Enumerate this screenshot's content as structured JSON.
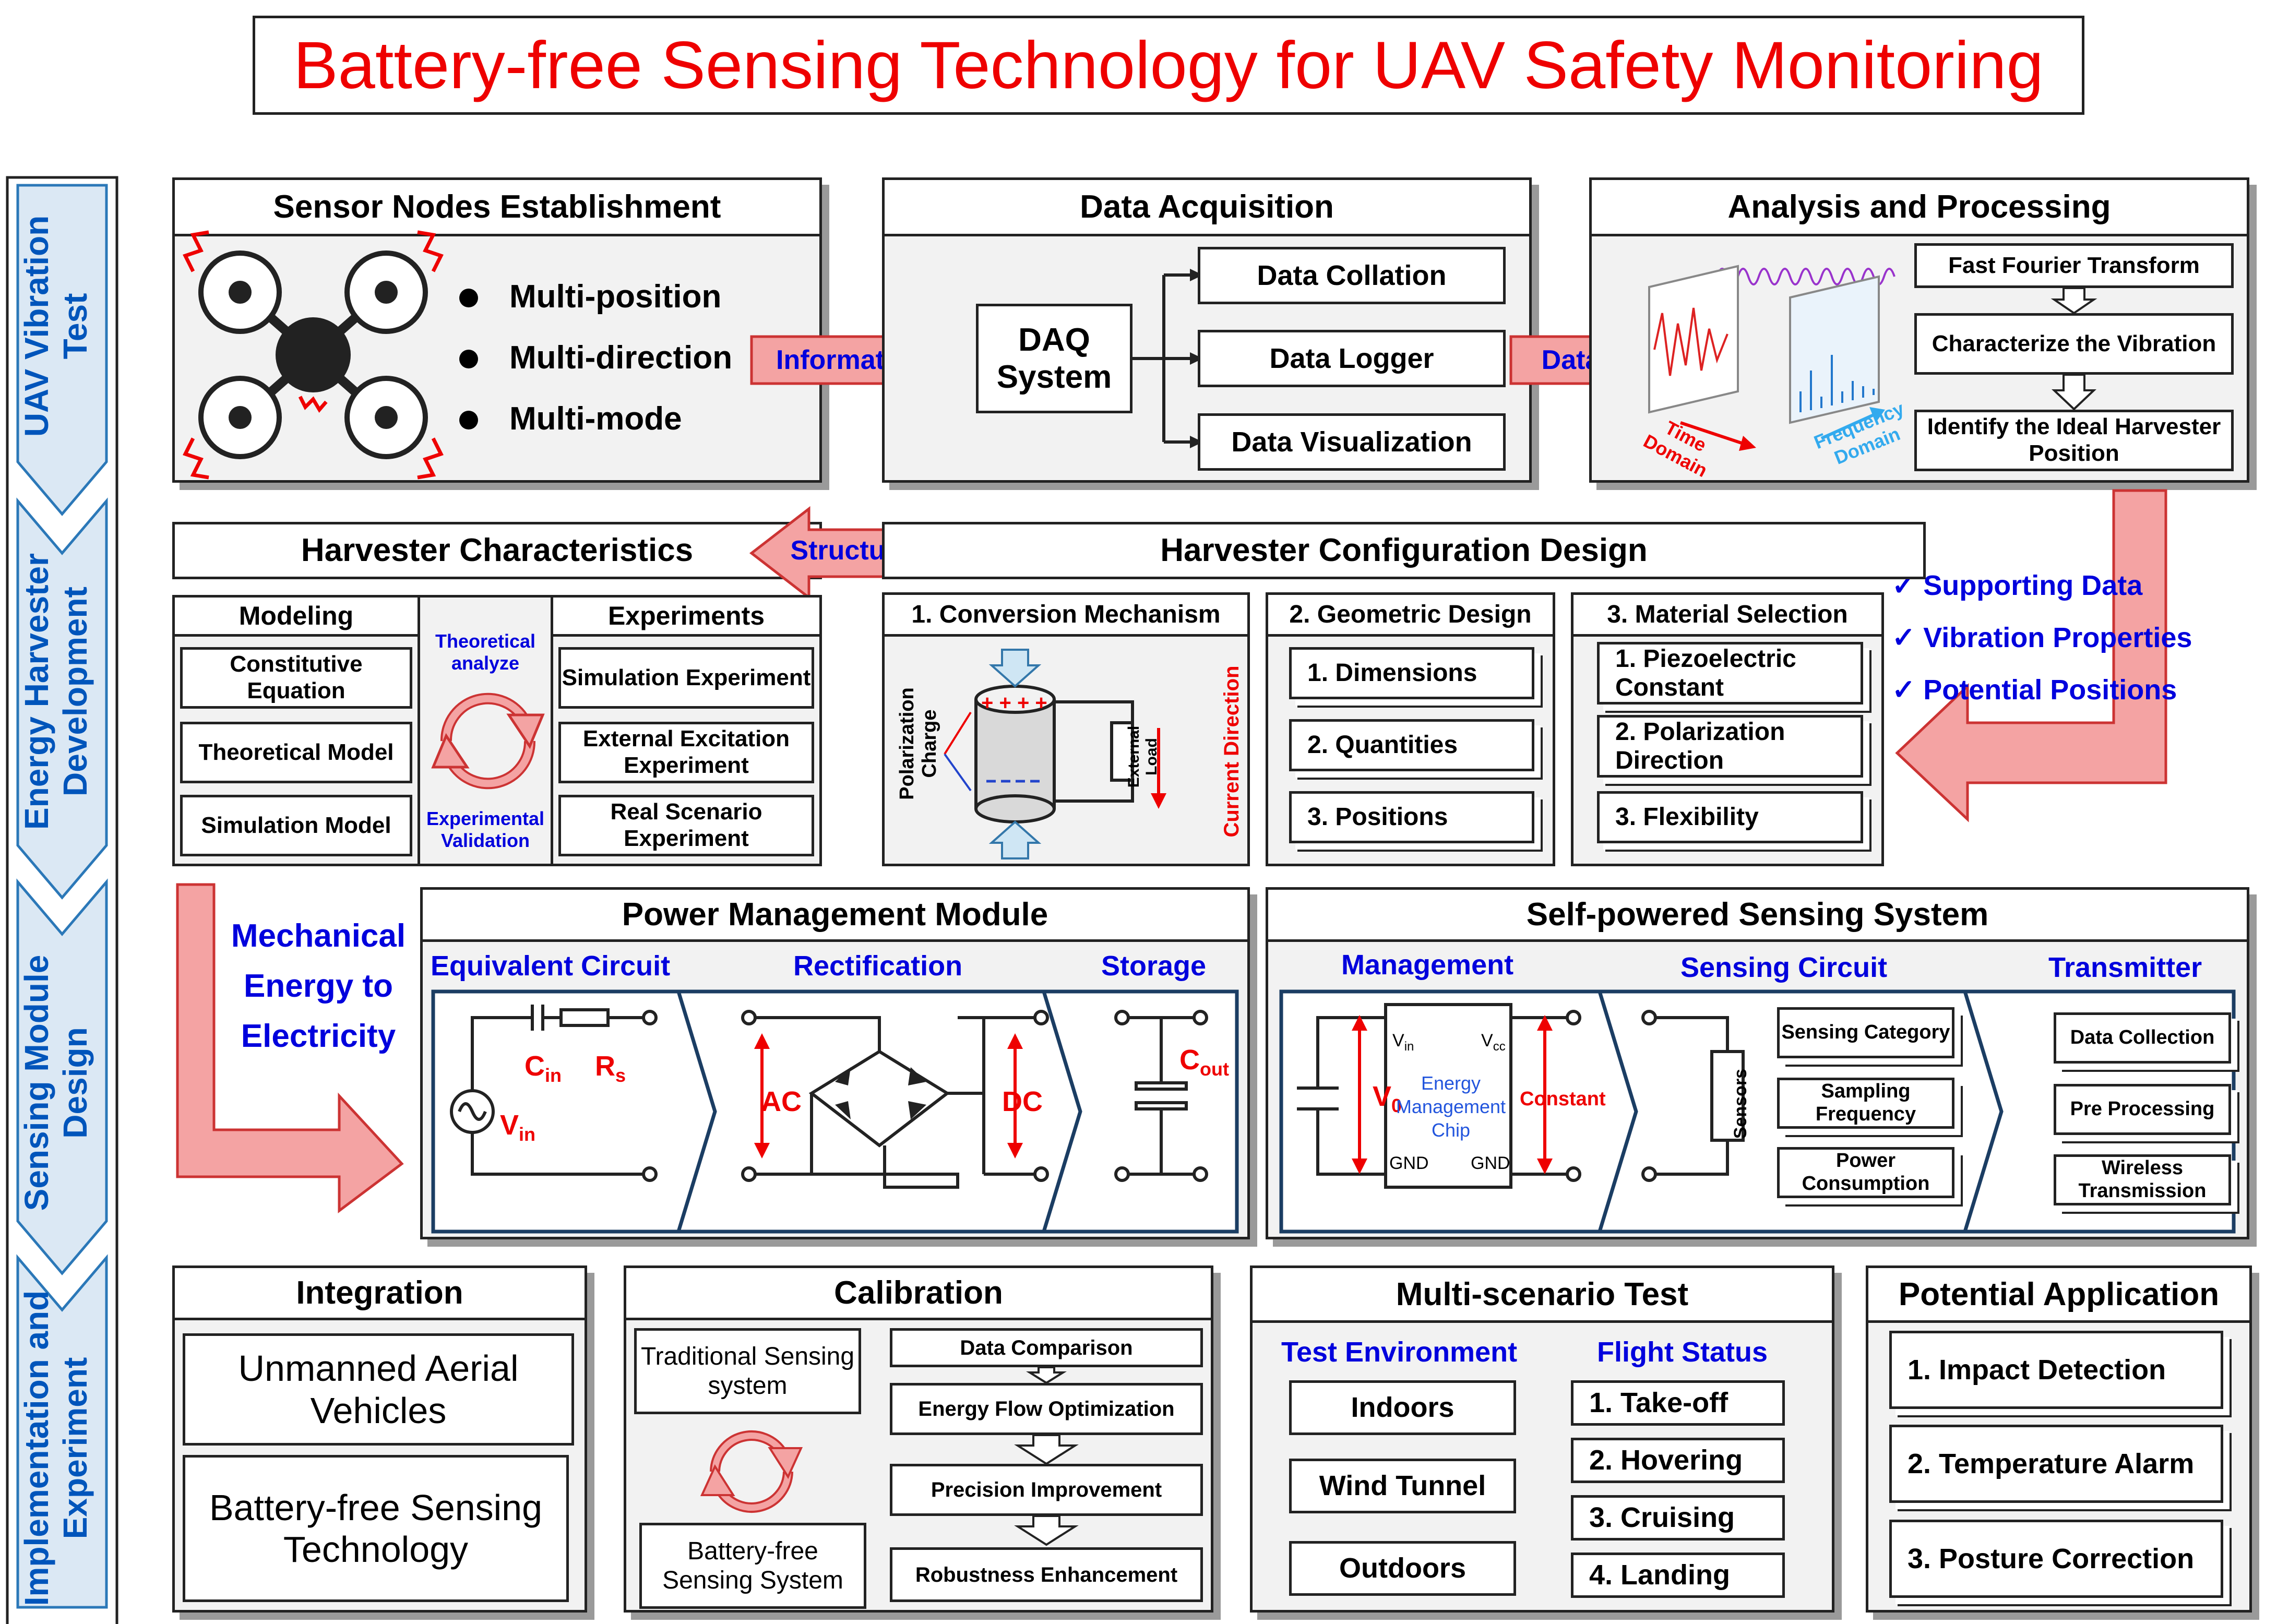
{
  "title": "Battery-free Sensing Technology for UAV Safety Monitoring",
  "colors": {
    "title_red": "#ee0000",
    "blue_label": "#0000dd",
    "side_blue": "#0055bb",
    "arrow_pink": "#f4a3a3",
    "chevron_fill": "#dbe8f4"
  },
  "sidebar": [
    {
      "label": "UAV Vibration Test"
    },
    {
      "label": "Energy Harvester Development"
    },
    {
      "label": "Sensing Module Design"
    },
    {
      "label": "Implementation and Experiment"
    }
  ],
  "sensor_nodes": {
    "title": "Sensor Nodes Establishment",
    "bullets": [
      "Multi-position",
      "Multi-direction",
      "Multi-mode"
    ]
  },
  "arrow_information": "Information",
  "data_acquisition": {
    "title": "Data Acquisition",
    "daq_line1": "DAQ",
    "daq_line2": "System",
    "outputs": [
      "Data Collation",
      "Data Logger",
      "Data Visualization"
    ]
  },
  "arrow_data": "Data",
  "analysis": {
    "title": "Analysis and Processing",
    "steps": [
      "Fast Fourier Transform",
      "Characterize the Vibration",
      "Identify the Ideal Harvester Position"
    ],
    "time_label": "Time Domain",
    "freq_label": "Frequency Domain"
  },
  "supporting": [
    "Supporting Data",
    "Vibration Properties",
    "Potential Positions"
  ],
  "harvester_char": {
    "title": "Harvester Characteristics",
    "modeling_head": "Modeling",
    "modeling": [
      "Constitutive Equation",
      "Theoretical Model",
      "Simulation Model"
    ],
    "experiments_head": "Experiments",
    "experiments": [
      "Simulation Experiment",
      "External Excitation Experiment",
      "Real Scenario Experiment"
    ],
    "theory_label": "Theoretical analyze",
    "exp_label": "Experimental Validation"
  },
  "arrow_structure": "Structure",
  "config": {
    "title": "Harvester Configuration Design",
    "conversion_head": "1. Conversion Mechanism",
    "polarization": "Polarization Charge",
    "external_load": "External Load",
    "current_direction": "Current Direction",
    "geometric_head": "2. Geometric Design",
    "geometric": [
      "1.   Dimensions",
      "2.   Quantities",
      "3.   Positions"
    ],
    "material_head": "3. Material Selection",
    "material": [
      "1.   Piezoelectric Constant",
      "2.   Polarization Direction",
      "3.   Flexibility"
    ]
  },
  "mech_energy": "Mechanical Energy to Electricity",
  "power_mgmt": {
    "title": "Power Management Module",
    "sub_equiv": "Equivalent Circuit",
    "sub_rect": "Rectification",
    "sub_storage": "Storage",
    "cin": "C",
    "cin_sub": "in",
    "rs": "R",
    "rs_sub": "s",
    "vin": "V",
    "vin_sub": "in",
    "ac": "AC",
    "dc": "DC",
    "cout": "C",
    "cout_sub": "out"
  },
  "self_powered": {
    "title": "Self-powered Sensing System",
    "sub_mgmt": "Management",
    "sub_sensing": "Sensing Circuit",
    "sub_tx": "Transmitter",
    "v0": "V",
    "v0_sub": "0",
    "chip_vin": "V",
    "chip_vin_sub": "in",
    "chip_vcc": "V",
    "chip_vcc_sub": "cc",
    "chip_label": "Energy Management Chip",
    "gnd": "GND",
    "constant": "Constant",
    "sensors": "Sensors",
    "sensing_items": [
      "Sensing Category",
      "Sampling Frequency",
      "Power Consumption"
    ],
    "tx_items": [
      "Data Collection",
      "Pre Processing",
      "Wireless Transmission"
    ]
  },
  "integration": {
    "title": "Integration",
    "items": [
      "Unmanned Aerial Vehicles",
      "Battery-free Sensing Technology"
    ]
  },
  "calibration": {
    "title": "Calibration",
    "left_top": "Traditional Sensing system",
    "left_bottom": "Battery-free Sensing System",
    "steps": [
      "Data Comparison",
      "Energy Flow Optimization",
      "Precision Improvement",
      "Robustness Enhancement"
    ]
  },
  "multi_test": {
    "title": "Multi-scenario Test",
    "env_head": "Test Environment",
    "env": [
      "Indoors",
      "Wind Tunnel",
      "Outdoors"
    ],
    "flight_head": "Flight Status",
    "flight": [
      "1.   Take-off",
      "2.   Hovering",
      "3.   Cruising",
      "4.   Landing"
    ]
  },
  "potential": {
    "title": "Potential Application",
    "items": [
      "1.   Impact Detection",
      "2.   Temperature Alarm",
      "3.   Posture Correction"
    ]
  }
}
